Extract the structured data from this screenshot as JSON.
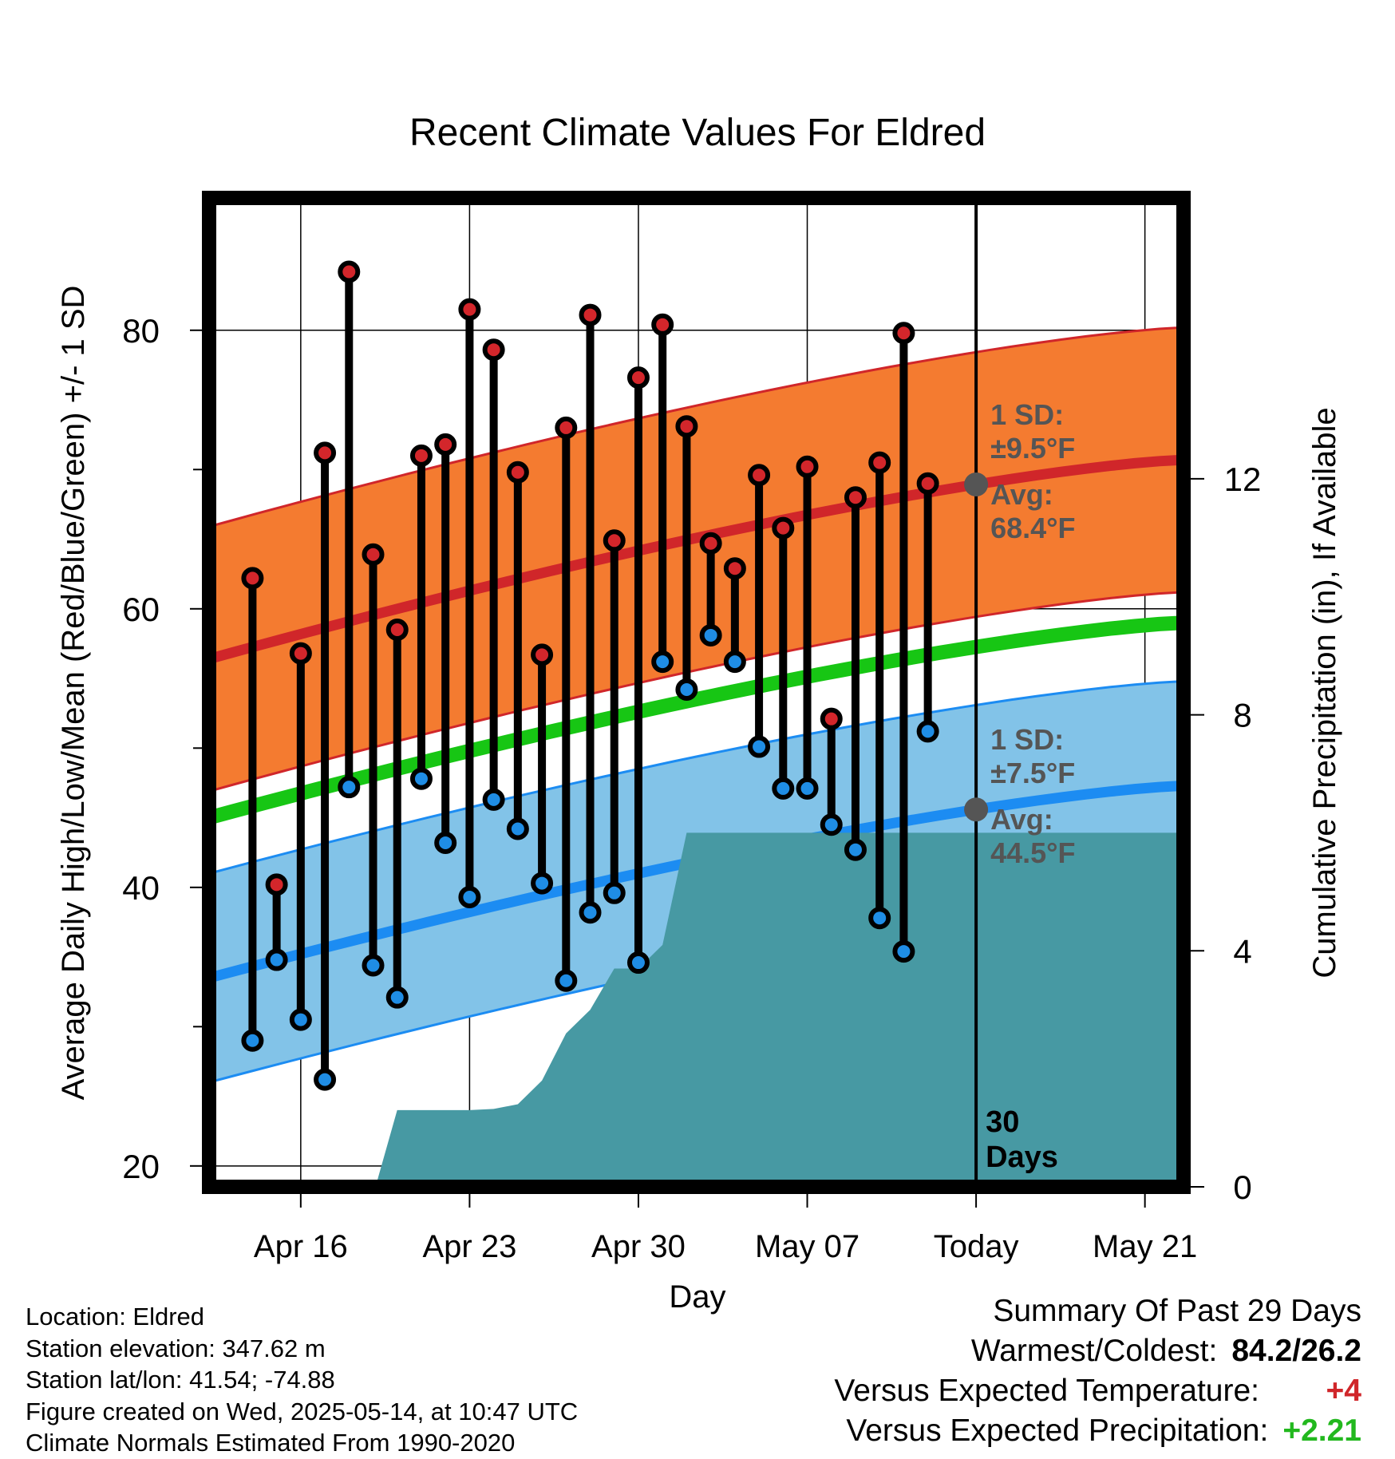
{
  "chart_data": {
    "type": "line",
    "title": "Recent Climate Values For Eldred",
    "xlabel": "Day",
    "ylabel": "Average Daily High/Low/Mean (Red/Blue/Green) +/- 1 SD",
    "y2label": "Cumulative Precipitation (in), If Available",
    "ylim": [
      18.5,
      89.5
    ],
    "y2lim": [
      0,
      16.76
    ],
    "xlim": [
      -3.8,
      36.6
    ],
    "x_tick_days": [
      0,
      7,
      14,
      21,
      28,
      35
    ],
    "x_tick_labels": [
      "Apr 16",
      "Apr 23",
      "Apr 30",
      "May 07",
      "Today",
      "May 21"
    ],
    "y_ticks": [
      20,
      40,
      60,
      80
    ],
    "y_minor_ticks": [
      30,
      50,
      70
    ],
    "y2_ticks": [
      0,
      4,
      8,
      12
    ],
    "grid": true,
    "today_day": 28,
    "x_day_reference": "Apr 16",
    "daily_highs": [
      62.2,
      40.2,
      56.8,
      71.2,
      84.2,
      63.9,
      58.5,
      71.0,
      71.8,
      81.5,
      78.6,
      69.8,
      56.7,
      73.0,
      81.1,
      64.9,
      76.6,
      80.4,
      73.1,
      64.7,
      62.9,
      69.6,
      65.8,
      70.2,
      52.1,
      68.0,
      70.5,
      79.8,
      69.0
    ],
    "daily_lows": [
      29.0,
      34.8,
      30.5,
      26.2,
      47.2,
      34.4,
      32.1,
      47.8,
      43.2,
      39.3,
      46.3,
      44.2,
      40.3,
      33.3,
      38.2,
      39.6,
      34.6,
      56.2,
      54.2,
      58.1,
      56.2,
      50.1,
      47.1,
      47.1,
      44.5,
      42.7,
      37.8,
      35.4,
      51.2
    ],
    "first_obs_day": -2,
    "normal_high": {
      "start": 56.4,
      "end": 70.7,
      "sd": 9.5,
      "label_sd": "1 SD:",
      "label_sd_val": "±9.5°F",
      "label_avg": "Avg:",
      "label_avg_val": "68.4°F"
    },
    "normal_low": {
      "start": 33.5,
      "end": 47.3,
      "sd": 7.5,
      "label_sd": "1 SD:",
      "label_sd_val": "±7.5°F",
      "label_avg": "Avg:",
      "label_avg_val": "44.5°F"
    },
    "normal_mean": {
      "start": 45.0,
      "end": 59.0
    },
    "precip_cumulative": [
      [
        3.1,
        0
      ],
      [
        4.0,
        1.3
      ],
      [
        7.0,
        1.3
      ],
      [
        8.0,
        1.32
      ],
      [
        9.0,
        1.4
      ],
      [
        10.0,
        1.8
      ],
      [
        11.0,
        2.6
      ],
      [
        12.0,
        3.0
      ],
      [
        13.0,
        3.7
      ],
      [
        14.0,
        3.7
      ],
      [
        15.0,
        4.1
      ],
      [
        16.0,
        6.0
      ],
      [
        36.6,
        6.0
      ]
    ],
    "today_label_line1": "30",
    "today_label_line2": "Days",
    "colors": {
      "high_band": "#f47b30",
      "high_line": "#d0262a",
      "low_band": "#82c3e8",
      "low_line": "#1c8cf2",
      "mean_line": "#17c614",
      "precip": "#4799a3",
      "high_dot": "#d3262b",
      "low_dot": "#1f8de5",
      "label_gray": "#555555"
    }
  },
  "footer": {
    "location": "Location: Eldred",
    "elevation": "Station elevation: 347.62 m",
    "latlon": "Station lat/lon: 41.54; -74.88",
    "created": "Figure created on Wed, 2025-05-14, at 10:47 UTC",
    "normals": "Climate Normals Estimated From 1990-2020"
  },
  "summary": {
    "title": "Summary Of Past 29 Days",
    "warm_cold_label": "Warmest/Coldest:",
    "warm_cold_value": "84.2/26.2",
    "temp_label": "Versus Expected Temperature:",
    "temp_value": "+4",
    "temp_color": "#d0262a",
    "precip_label": "Versus Expected Precipitation:",
    "precip_value": "+2.21",
    "precip_color": "#22b81e"
  }
}
